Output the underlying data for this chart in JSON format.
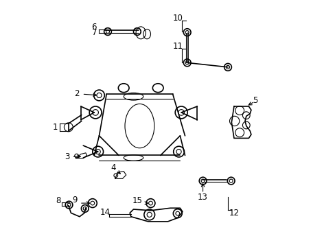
{
  "bg_color": "#ffffff",
  "line_color": "#000000",
  "label_color": "#000000",
  "fig_width": 4.89,
  "fig_height": 3.6,
  "dpi": 100
}
